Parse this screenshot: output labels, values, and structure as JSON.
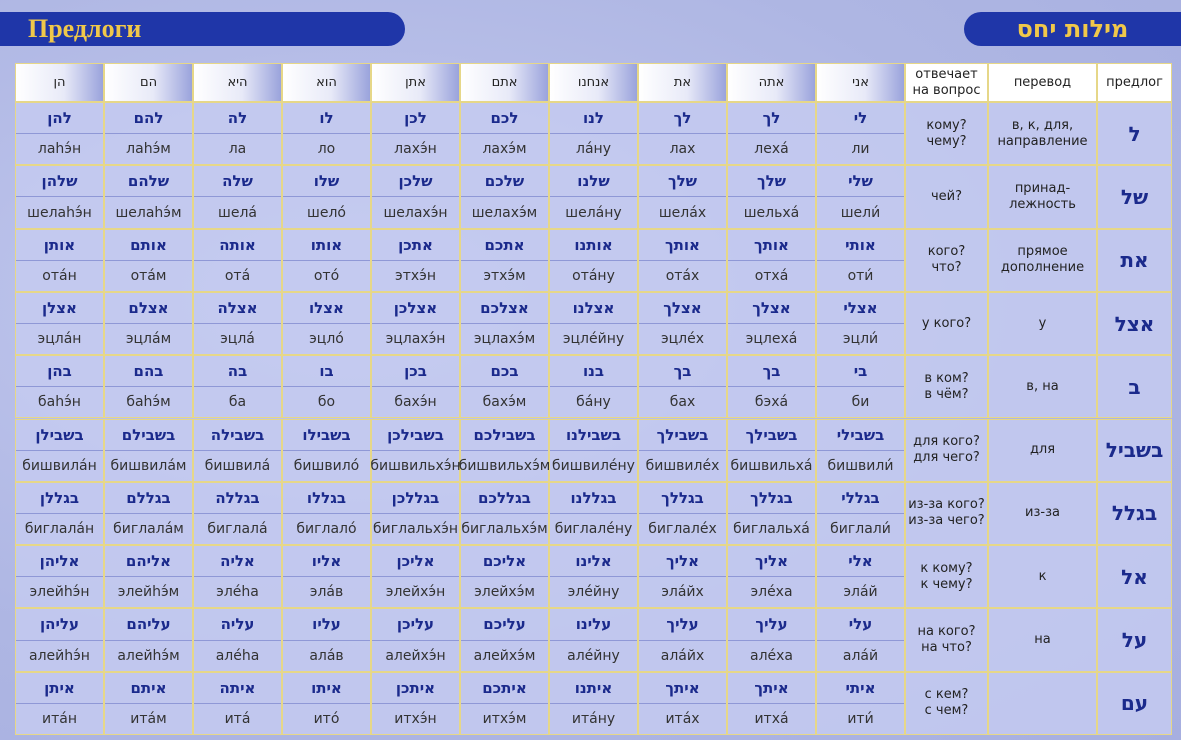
{
  "header": {
    "title": "Предлоги",
    "title_hebrew": "מילות יחס"
  },
  "table": {
    "columns": [
      "הן",
      "הם",
      "היא",
      "הוא",
      "אתן",
      "אתם",
      "אנחנו",
      "את",
      "אתה",
      "אני"
    ],
    "question_heading": [
      "отвечает",
      "на вопрос"
    ],
    "translation_heading": "перевод",
    "preposition_heading": "предлог",
    "rows": [
      {
        "preposition": "ל",
        "translation": [
          "в, к, для,",
          "направление"
        ],
        "question": [
          "кому?",
          "чему?"
        ],
        "forms": [
          {
            "hebrew": "להן",
            "translit": "лаhэ́н"
          },
          {
            "hebrew": "להם",
            "translit": "лаhэ́м"
          },
          {
            "hebrew": "לה",
            "translit": "ла"
          },
          {
            "hebrew": "לו",
            "translit": "ло"
          },
          {
            "hebrew": "לכן",
            "translit": "лахэ́н"
          },
          {
            "hebrew": "לכם",
            "translit": "лахэ́м"
          },
          {
            "hebrew": "לנו",
            "translit": "ла́ну"
          },
          {
            "hebrew": "לך",
            "translit": "лах"
          },
          {
            "hebrew": "לך",
            "translit": "леха́"
          },
          {
            "hebrew": "לי",
            "translit": "ли"
          }
        ]
      },
      {
        "preposition": "של",
        "translation": [
          "принад-",
          "лежность"
        ],
        "question": [
          "чей?"
        ],
        "forms": [
          {
            "hebrew": "שלהן",
            "translit": "шелаhэ́н"
          },
          {
            "hebrew": "שלהם",
            "translit": "шелаhэ́м"
          },
          {
            "hebrew": "שלה",
            "translit": "шела́"
          },
          {
            "hebrew": "שלו",
            "translit": "шело́"
          },
          {
            "hebrew": "שלכן",
            "translit": "шелахэ́н"
          },
          {
            "hebrew": "שלכם",
            "translit": "шелахэ́м"
          },
          {
            "hebrew": "שלנו",
            "translit": "шела́ну"
          },
          {
            "hebrew": "שלך",
            "translit": "шела́х"
          },
          {
            "hebrew": "שלך",
            "translit": "шельха́"
          },
          {
            "hebrew": "שלי",
            "translit": "шели́"
          }
        ]
      },
      {
        "preposition": "את",
        "translation": [
          "прямое",
          "дополнение"
        ],
        "question": [
          "кого?",
          "что?"
        ],
        "forms": [
          {
            "hebrew": "אותן",
            "translit": "ота́н"
          },
          {
            "hebrew": "אותם",
            "translit": "ота́м"
          },
          {
            "hebrew": "אותה",
            "translit": "ота́"
          },
          {
            "hebrew": "אותו",
            "translit": "ото́"
          },
          {
            "hebrew": "אתכן",
            "translit": "этхэ́н"
          },
          {
            "hebrew": "אתכם",
            "translit": "этхэ́м"
          },
          {
            "hebrew": "אותנו",
            "translit": "ота́ну"
          },
          {
            "hebrew": "אותך",
            "translit": "ота́х"
          },
          {
            "hebrew": "אותך",
            "translit": "отха́"
          },
          {
            "hebrew": "אותי",
            "translit": "оти́"
          }
        ]
      },
      {
        "preposition": "אצל",
        "translation": [
          "у"
        ],
        "question": [
          "у кого?"
        ],
        "forms": [
          {
            "hebrew": "אצלן",
            "translit": "эцла́н"
          },
          {
            "hebrew": "אצלם",
            "translit": "эцла́м"
          },
          {
            "hebrew": "אצלה",
            "translit": "эцла́"
          },
          {
            "hebrew": "אצלו",
            "translit": "эцло́"
          },
          {
            "hebrew": "אצלכן",
            "translit": "эцлахэ́н"
          },
          {
            "hebrew": "אצלכם",
            "translit": "эцлахэ́м"
          },
          {
            "hebrew": "אצלנו",
            "translit": "эцле́йну"
          },
          {
            "hebrew": "אצלך",
            "translit": "эцле́х"
          },
          {
            "hebrew": "אצלך",
            "translit": "эцлеха́"
          },
          {
            "hebrew": "אצלי",
            "translit": "эцли́"
          }
        ]
      },
      {
        "preposition": "ב",
        "translation": [
          "в, на"
        ],
        "question": [
          "в ком?",
          "в чём?"
        ],
        "forms": [
          {
            "hebrew": "בהן",
            "translit": "баhэ́н"
          },
          {
            "hebrew": "בהם",
            "translit": "баhэ́м"
          },
          {
            "hebrew": "בה",
            "translit": "ба"
          },
          {
            "hebrew": "בו",
            "translit": "бо"
          },
          {
            "hebrew": "בכן",
            "translit": "бахэ́н"
          },
          {
            "hebrew": "בכם",
            "translit": "бахэ́м"
          },
          {
            "hebrew": "בנו",
            "translit": "ба́ну"
          },
          {
            "hebrew": "בך",
            "translit": "бах"
          },
          {
            "hebrew": "בך",
            "translit": "бэха́"
          },
          {
            "hebrew": "בי",
            "translit": "би"
          }
        ]
      },
      {
        "preposition": "בשביל",
        "translation": [
          "для"
        ],
        "question": [
          "для кого?",
          "для чего?"
        ],
        "forms": [
          {
            "hebrew": "בשבילן",
            "translit": "бишвила́н"
          },
          {
            "hebrew": "בשבילם",
            "translit": "бишвила́м"
          },
          {
            "hebrew": "בשבילה",
            "translit": "бишвила́"
          },
          {
            "hebrew": "בשבילו",
            "translit": "бишвило́"
          },
          {
            "hebrew": "בשבילכן",
            "translit": "бишвильхэ́н"
          },
          {
            "hebrew": "בשבילכם",
            "translit": "бишвильхэ́м"
          },
          {
            "hebrew": "בשבילנו",
            "translit": "бишвиле́ну"
          },
          {
            "hebrew": "בשבילך",
            "translit": "бишвиле́х"
          },
          {
            "hebrew": "בשבילך",
            "translit": "бишвильха́"
          },
          {
            "hebrew": "בשבילי",
            "translit": "бишвили́"
          }
        ]
      },
      {
        "preposition": "בגלל",
        "translation": [
          "из-за"
        ],
        "question": [
          "из-за кого?",
          "из-за чего?"
        ],
        "forms": [
          {
            "hebrew": "בגללן",
            "translit": "биглала́н"
          },
          {
            "hebrew": "בגללם",
            "translit": "биглала́м"
          },
          {
            "hebrew": "בגללה",
            "translit": "биглала́"
          },
          {
            "hebrew": "בגללו",
            "translit": "биглало́"
          },
          {
            "hebrew": "בגללכן",
            "translit": "биглальхэ́н"
          },
          {
            "hebrew": "בגללכם",
            "translit": "биглальхэ́м"
          },
          {
            "hebrew": "בגללנו",
            "translit": "биглале́ну"
          },
          {
            "hebrew": "בגללך",
            "translit": "биглале́х"
          },
          {
            "hebrew": "בגללך",
            "translit": "биглальха́"
          },
          {
            "hebrew": "בגללי",
            "translit": "биглали́"
          }
        ]
      },
      {
        "preposition": "אל",
        "translation": [
          "к"
        ],
        "question": [
          "к кому?",
          "к чему?"
        ],
        "forms": [
          {
            "hebrew": "אליהן",
            "translit": "элейhэ́н"
          },
          {
            "hebrew": "אליהם",
            "translit": "элейhэ́м"
          },
          {
            "hebrew": "אליה",
            "translit": "эле́hа"
          },
          {
            "hebrew": "אליו",
            "translit": "эла́в"
          },
          {
            "hebrew": "אליכן",
            "translit": "элейхэ́н"
          },
          {
            "hebrew": "אליכם",
            "translit": "элейхэ́м"
          },
          {
            "hebrew": "אלינו",
            "translit": "эле́йну"
          },
          {
            "hebrew": "אליך",
            "translit": "эла́йх"
          },
          {
            "hebrew": "אליך",
            "translit": "эле́ха"
          },
          {
            "hebrew": "אלי",
            "translit": "эла́й"
          }
        ]
      },
      {
        "preposition": "על",
        "translation": [
          "на"
        ],
        "question": [
          "на кого?",
          "на что?"
        ],
        "forms": [
          {
            "hebrew": "עליהן",
            "translit": "алейhэ́н"
          },
          {
            "hebrew": "עליהם",
            "translit": "алейhэ́м"
          },
          {
            "hebrew": "עליה",
            "translit": "але́hа"
          },
          {
            "hebrew": "עליו",
            "translit": "ала́в"
          },
          {
            "hebrew": "עליכן",
            "translit": "алейхэ́н"
          },
          {
            "hebrew": "עליכם",
            "translit": "алейхэ́м"
          },
          {
            "hebrew": "עלינו",
            "translit": "але́йну"
          },
          {
            "hebrew": "עליך",
            "translit": "ала́йх"
          },
          {
            "hebrew": "עליך",
            "translit": "але́ха"
          },
          {
            "hebrew": "עלי",
            "translit": "ала́й"
          }
        ]
      },
      {
        "preposition": "עם",
        "translation": [],
        "question": [
          "с кем?",
          "с чем?"
        ],
        "forms": [
          {
            "hebrew": "איתן",
            "translit": "ита́н"
          },
          {
            "hebrew": "איתם",
            "translit": "ита́м"
          },
          {
            "hebrew": "איתה",
            "translit": "ита́"
          },
          {
            "hebrew": "איתו",
            "translit": "ито́"
          },
          {
            "hebrew": "איתכן",
            "translit": "итхэ́н"
          },
          {
            "hebrew": "איתכם",
            "translit": "итхэ́м"
          },
          {
            "hebrew": "איתנו",
            "translit": "ита́ну"
          },
          {
            "hebrew": "איתך",
            "translit": "ита́х"
          },
          {
            "hebrew": "איתך",
            "translit": "итха́"
          },
          {
            "hebrew": "איתי",
            "translit": "ити́"
          }
        ]
      }
    ]
  }
}
